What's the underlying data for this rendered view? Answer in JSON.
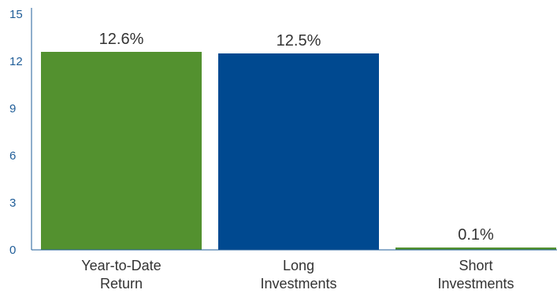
{
  "chart_data": {
    "type": "bar",
    "categories": [
      [
        "Year-to-Date",
        "Return"
      ],
      [
        "Long",
        "Investments"
      ],
      [
        "Short",
        "Investments"
      ]
    ],
    "values": [
      12.6,
      12.5,
      0.1
    ],
    "data_labels": [
      "12.6%",
      "12.5%",
      "0.1%"
    ],
    "bar_colors": [
      "#53912f",
      "#004990",
      "#53912f"
    ],
    "ylim": [
      0,
      15
    ],
    "yticks": [
      0,
      3,
      6,
      9,
      12,
      15
    ],
    "title": "",
    "xlabel": "",
    "ylabel": "",
    "grid": false,
    "axis_color": "#1f5d98"
  }
}
